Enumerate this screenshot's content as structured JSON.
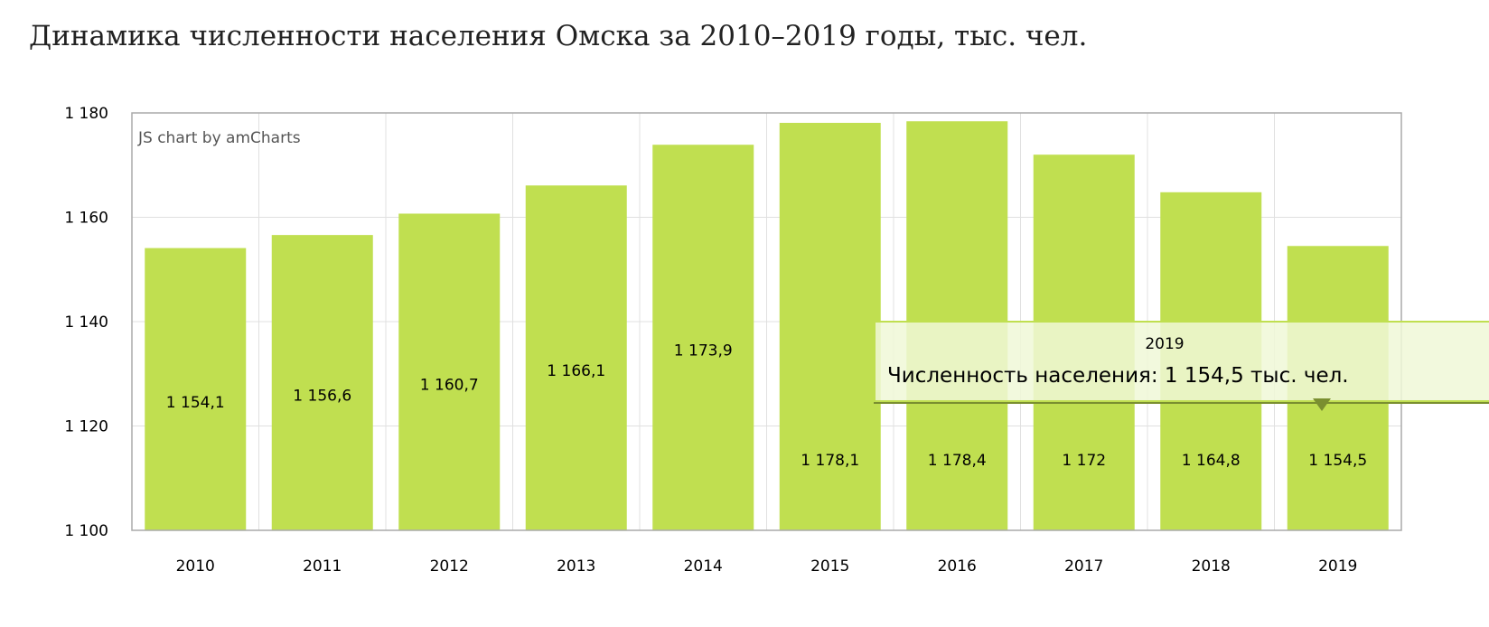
{
  "title": "Динамика численности населения Омска за 2010–2019 годы, тыс. чел.",
  "credit": "JS chart by amCharts",
  "chart_data": {
    "type": "bar",
    "title": "Динамика численности населения Омска за 2010–2019 годы, тыс. чел.",
    "categories": [
      "2010",
      "2011",
      "2012",
      "2013",
      "2014",
      "2015",
      "2016",
      "2017",
      "2018",
      "2019"
    ],
    "values": [
      1154.1,
      1156.6,
      1160.7,
      1166.1,
      1173.9,
      1178.1,
      1178.4,
      1172,
      1164.8,
      1154.5
    ],
    "data_labels": [
      "1 154,1",
      "1 156,6",
      "1 160,7",
      "1 166,1",
      "1 173,9",
      "1 178,1",
      "1 178,4",
      "1 172",
      "1 164,8",
      "1 154,5"
    ],
    "ylim": [
      1100,
      1180
    ],
    "yticks": [
      1100,
      1120,
      1140,
      1160,
      1180
    ],
    "ytick_labels": [
      "1 100",
      "1 120",
      "1 140",
      "1 160",
      "1 180"
    ],
    "grid": true,
    "bar_color": "#c0df50"
  },
  "tooltip": {
    "title": "2019",
    "body": "Численность населения: 1 154,5 тыс. чел."
  }
}
